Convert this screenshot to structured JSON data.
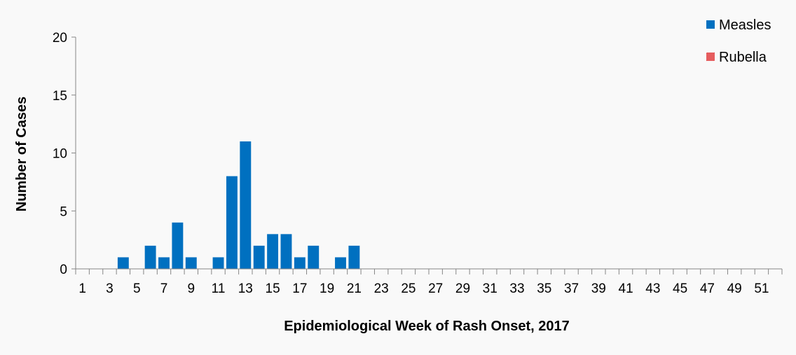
{
  "chart_data": {
    "type": "bar",
    "title": "",
    "xlabel": "Epidemiological Week of Rash Onset, 2017",
    "ylabel": "Number of Cases",
    "ylim": [
      0,
      20
    ],
    "yticks": [
      "0",
      "5",
      "10",
      "15",
      "20"
    ],
    "categories": [
      1,
      2,
      3,
      4,
      5,
      6,
      7,
      8,
      9,
      10,
      11,
      12,
      13,
      14,
      15,
      16,
      17,
      18,
      19,
      20,
      21,
      22,
      23,
      24,
      25,
      26,
      27,
      28,
      29,
      30,
      31,
      32,
      33,
      34,
      35,
      36,
      37,
      38,
      39,
      40,
      41,
      42,
      43,
      44,
      45,
      46,
      47,
      48,
      49,
      50,
      51,
      52
    ],
    "xtick_labels": [
      "1",
      "3",
      "5",
      "7",
      "9",
      "11",
      "13",
      "15",
      "17",
      "19",
      "21",
      "23",
      "25",
      "27",
      "29",
      "31",
      "33",
      "35",
      "37",
      "39",
      "41",
      "43",
      "45",
      "47",
      "49",
      "51"
    ],
    "grid": false,
    "legend_position": "top-right",
    "series": [
      {
        "name": "Measles",
        "color": "#0070c0",
        "values": [
          0,
          0,
          0,
          1,
          0,
          2,
          1,
          4,
          1,
          0,
          1,
          8,
          11,
          2,
          3,
          3,
          1,
          2,
          0,
          1,
          2,
          0,
          0,
          0,
          0,
          0,
          0,
          0,
          0,
          0,
          0,
          0,
          0,
          0,
          0,
          0,
          0,
          0,
          0,
          0,
          0,
          0,
          0,
          0,
          0,
          0,
          0,
          0,
          0,
          0,
          0,
          0
        ]
      },
      {
        "name": "Rubella",
        "color": "#d7191c",
        "values": [
          0,
          0,
          0,
          0,
          0,
          0,
          0,
          0,
          0,
          0,
          0,
          0,
          0,
          0,
          0,
          0,
          0,
          0,
          0,
          0,
          0,
          0,
          0,
          0,
          0,
          0,
          0,
          0,
          0,
          0,
          0,
          0,
          0,
          0,
          0,
          0,
          0,
          0,
          0,
          0,
          0,
          0,
          0,
          0,
          0,
          0,
          0,
          0,
          0,
          0,
          0,
          0
        ]
      }
    ]
  }
}
